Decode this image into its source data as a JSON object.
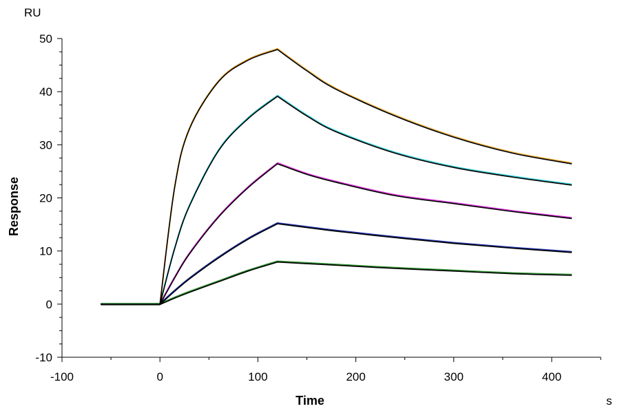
{
  "chart_data": {
    "type": "line",
    "title": "",
    "xlabel": "Time",
    "ylabel": "Response",
    "y_unit": "RU",
    "x_unit": "s",
    "xlim": [
      -100,
      450
    ],
    "ylim": [
      -10,
      50
    ],
    "x_ticks": [
      -100,
      0,
      100,
      200,
      300,
      400
    ],
    "y_ticks": [
      -10,
      0,
      10,
      20,
      30,
      40,
      50
    ],
    "grid": false,
    "legend": "none",
    "association_start": 0,
    "dissociation_start": 120,
    "end_time": 420,
    "baseline_start": -60,
    "series": [
      {
        "color": "#e0a030",
        "x": [
          -60,
          0,
          15,
          30,
          60,
          90,
          120,
          150,
          180,
          240,
          300,
          360,
          420
        ],
        "values": [
          0,
          0,
          22.0,
          33.0,
          42.0,
          46.0,
          48.0,
          44.0,
          40.5,
          35.5,
          31.5,
          28.5,
          26.5
        ]
      },
      {
        "color": "#30c8d0",
        "x": [
          -60,
          0,
          15,
          30,
          60,
          90,
          120,
          150,
          180,
          240,
          300,
          360,
          420
        ],
        "values": [
          0,
          0,
          10.5,
          18.5,
          29.0,
          35.0,
          39.2,
          35.5,
          32.5,
          28.5,
          25.8,
          24.0,
          22.5
        ]
      },
      {
        "color": "#d030d0",
        "x": [
          -60,
          0,
          15,
          30,
          60,
          90,
          120,
          150,
          180,
          240,
          300,
          360,
          420
        ],
        "values": [
          0,
          0,
          5.0,
          9.5,
          16.5,
          22.0,
          26.5,
          24.5,
          23.0,
          20.5,
          19.0,
          17.5,
          16.2
        ]
      },
      {
        "color": "#2030a0",
        "x": [
          -60,
          0,
          15,
          30,
          60,
          90,
          120,
          150,
          180,
          240,
          300,
          360,
          420
        ],
        "values": [
          0,
          0,
          2.5,
          4.8,
          8.8,
          12.3,
          15.2,
          14.5,
          13.8,
          12.6,
          11.5,
          10.6,
          9.8
        ]
      },
      {
        "color": "#309030",
        "x": [
          -60,
          0,
          15,
          30,
          60,
          90,
          120,
          150,
          180,
          240,
          300,
          360,
          420
        ],
        "values": [
          0,
          0,
          1.2,
          2.3,
          4.3,
          6.3,
          8.0,
          7.7,
          7.4,
          6.8,
          6.3,
          5.8,
          5.5
        ]
      }
    ]
  }
}
